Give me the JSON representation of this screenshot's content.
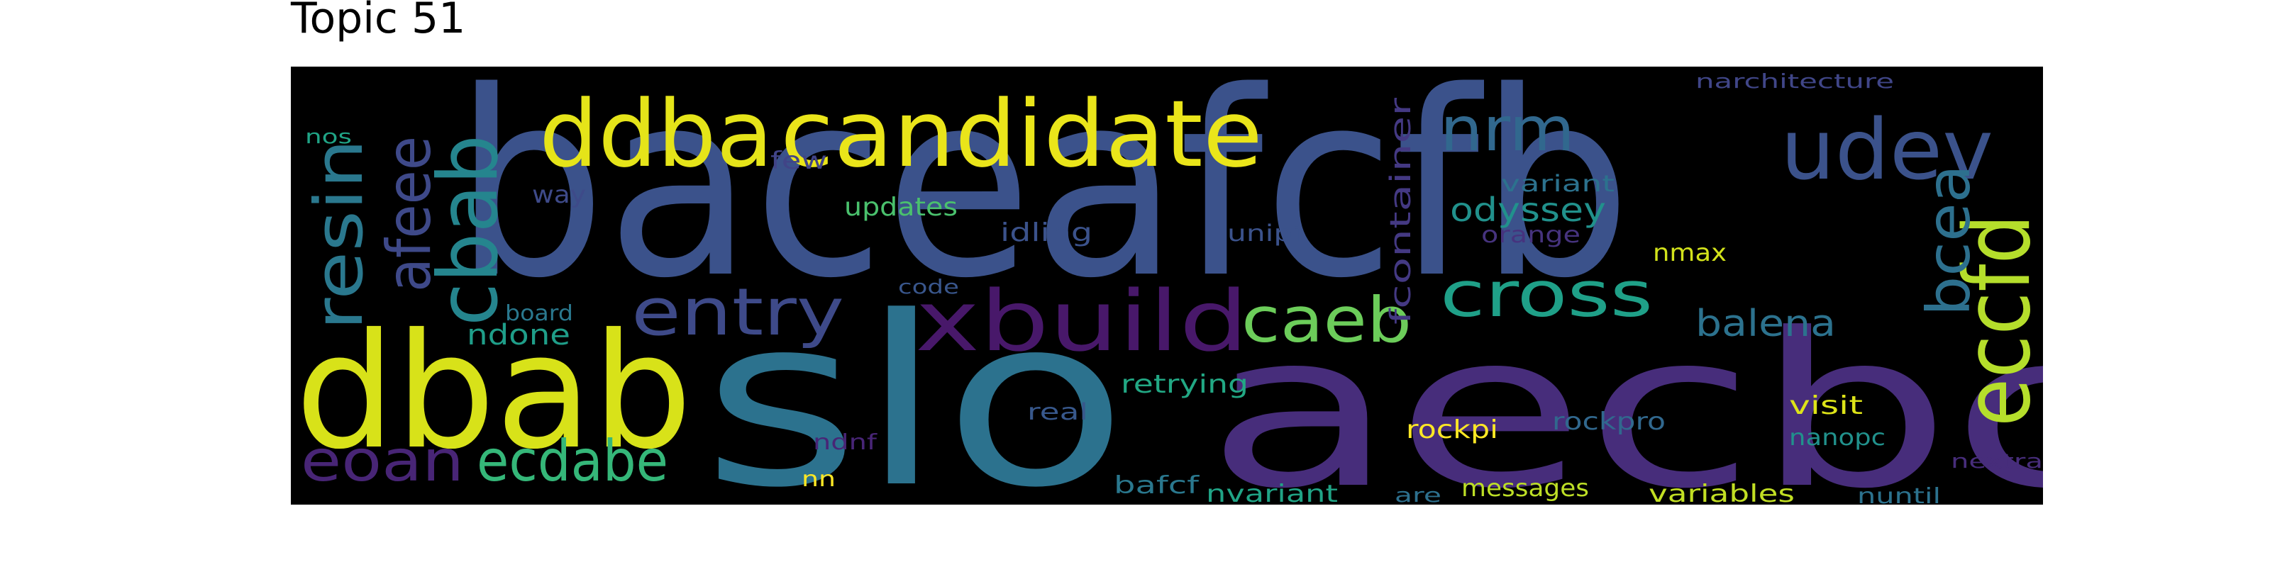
{
  "title": "Topic 51",
  "words": [
    {
      "text": "baceafcfb",
      "color": "#3b528b",
      "vertical": false
    },
    {
      "text": "aecbc",
      "color": "#472d7b",
      "vertical": false
    },
    {
      "text": "slo",
      "color": "#2c728e",
      "vertical": false
    },
    {
      "text": "dbab",
      "color": "#d8e219",
      "vertical": false
    },
    {
      "text": "candidate",
      "color": "#eae51a",
      "vertical": false
    },
    {
      "text": "ddba",
      "color": "#e5e419",
      "vertical": false
    },
    {
      "text": "xbuild",
      "color": "#48186a",
      "vertical": false
    },
    {
      "text": "udev",
      "color": "#3b528b",
      "vertical": false
    },
    {
      "text": "eccfd",
      "color": "#b5de2b",
      "vertical": true
    },
    {
      "text": "cbab",
      "color": "#25858e",
      "vertical": true
    },
    {
      "text": "resin",
      "color": "#2a788e",
      "vertical": true
    },
    {
      "text": "afeee",
      "color": "#3e4989",
      "vertical": true
    },
    {
      "text": "entry",
      "color": "#3e4a89",
      "vertical": false
    },
    {
      "text": "nrm",
      "color": "#31688e",
      "vertical": false
    },
    {
      "text": "caeb",
      "color": "#6ccd5a",
      "vertical": false
    },
    {
      "text": "cross",
      "color": "#1fa088",
      "vertical": false
    },
    {
      "text": "bcea",
      "color": "#2d708e",
      "vertical": true
    },
    {
      "text": "ecdabe",
      "color": "#35b779",
      "vertical": false
    },
    {
      "text": "eoan",
      "color": "#482576",
      "vertical": false
    },
    {
      "text": "fcontainer",
      "color": "#443983",
      "vertical": true
    },
    {
      "text": "odyssey",
      "color": "#21918c",
      "vertical": false
    },
    {
      "text": "balena",
      "color": "#2c728e",
      "vertical": false
    },
    {
      "text": "updates",
      "color": "#4ac16d",
      "vertical": false
    },
    {
      "text": "idling",
      "color": "#3b528b",
      "vertical": false
    },
    {
      "text": "rockpi",
      "color": "#fde725",
      "vertical": false
    },
    {
      "text": "ndone",
      "color": "#1f9e89",
      "vertical": false
    },
    {
      "text": "retrying",
      "color": "#22a884",
      "vertical": false
    },
    {
      "text": "variant",
      "color": "#2c728e",
      "vertical": false
    },
    {
      "text": "rockpro",
      "color": "#31688e",
      "vertical": false
    },
    {
      "text": "visit",
      "color": "#dde318",
      "vertical": false
    },
    {
      "text": "nmax",
      "color": "#d2e21b",
      "vertical": false
    },
    {
      "text": "nanopc",
      "color": "#21918c",
      "vertical": false
    },
    {
      "text": "messages",
      "color": "#bddf26",
      "vertical": false
    },
    {
      "text": "variables",
      "color": "#c2df23",
      "vertical": false
    },
    {
      "text": "nvariant",
      "color": "#20a486",
      "vertical": false
    },
    {
      "text": "bafcf",
      "color": "#2a788e",
      "vertical": false
    },
    {
      "text": "unipi",
      "color": "#3b528b",
      "vertical": false
    },
    {
      "text": "orange",
      "color": "#46337e",
      "vertical": false
    },
    {
      "text": "way",
      "color": "#3e4a89",
      "vertical": false
    },
    {
      "text": "few",
      "color": "#414487",
      "vertical": false
    },
    {
      "text": "board",
      "color": "#2a788e",
      "vertical": false
    },
    {
      "text": "code",
      "color": "#39568c",
      "vertical": false
    },
    {
      "text": "real",
      "color": "#38588c",
      "vertical": false
    },
    {
      "text": "ndnf",
      "color": "#482576",
      "vertical": false
    },
    {
      "text": "nn",
      "color": "#fde725",
      "vertical": false
    },
    {
      "text": "are",
      "color": "#2d708e",
      "vertical": false
    },
    {
      "text": "nuntil",
      "color": "#2c728e",
      "vertical": false
    },
    {
      "text": "nextra",
      "color": "#472d7b",
      "vertical": false
    },
    {
      "text": "narchitecture",
      "color": "#404688",
      "vertical": false
    },
    {
      "text": "nos",
      "color": "#20a486",
      "vertical": false
    }
  ]
}
